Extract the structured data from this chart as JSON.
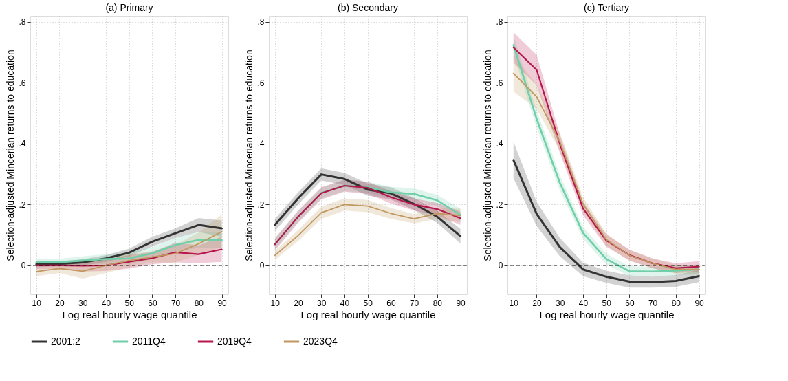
{
  "chart_data": [
    {
      "type": "line",
      "title": "(a) Primary",
      "xlabel": "Log real hourly wage quantile",
      "ylabel": "Selection-adjusted Mincerian returns to education",
      "x": [
        10,
        20,
        30,
        40,
        50,
        60,
        70,
        80,
        90
      ],
      "xlim": [
        7.4,
        92.8
      ],
      "xticks": [
        10,
        20,
        30,
        40,
        50,
        60,
        70,
        80,
        90
      ],
      "ylim": [
        -0.095,
        0.82
      ],
      "yticks": [
        {
          "value": 0,
          "label": "0"
        },
        {
          "value": 0.2,
          "label": ".2"
        },
        {
          "value": 0.4,
          "label": ".4"
        },
        {
          "value": 0.6,
          "label": ".6"
        },
        {
          "value": 0.8,
          "label": ".8"
        }
      ],
      "grid": true,
      "legend": "bottom",
      "ref_lines": [
        {
          "axis": "y",
          "value": 0,
          "color": "#000000",
          "line_style": "dashed"
        }
      ],
      "series": [
        {
          "name": "2001:2",
          "color": "#333333",
          "values": [
            0.004,
            0.005,
            0.01,
            0.023,
            0.042,
            0.078,
            0.106,
            0.133,
            0.122
          ],
          "lower": [
            -0.005,
            -0.003,
            0,
            0.012,
            0.03,
            0.062,
            0.09,
            0.11,
            0.095
          ],
          "upper": [
            0.013,
            0.014,
            0.02,
            0.034,
            0.055,
            0.094,
            0.122,
            0.156,
            0.148
          ]
        },
        {
          "name": "2011Q4",
          "color": "#6fcfa8",
          "values": [
            0.01,
            0.011,
            0.016,
            0.021,
            0.023,
            0.04,
            0.067,
            0.084,
            0.083
          ],
          "lower": [
            0,
            0,
            0.002,
            0.005,
            0.005,
            0.02,
            0.045,
            0.058,
            0.058
          ],
          "upper": [
            0.02,
            0.022,
            0.03,
            0.037,
            0.042,
            0.06,
            0.09,
            0.11,
            0.108
          ]
        },
        {
          "name": "2019Q4",
          "color": "#b5164b",
          "values": [
            0,
            0,
            -0.001,
            0,
            0.012,
            0.024,
            0.043,
            0.037,
            0.053
          ],
          "lower": [
            -0.012,
            -0.013,
            -0.02,
            -0.018,
            -0.01,
            0.004,
            0.01,
            0.008,
            0.012
          ],
          "upper": [
            0.012,
            0.013,
            0.018,
            0.018,
            0.034,
            0.044,
            0.075,
            0.066,
            0.095
          ]
        },
        {
          "name": "2023Q4",
          "color": "#c0975f",
          "values": [
            -0.02,
            -0.01,
            -0.019,
            0,
            0.016,
            0.028,
            0.039,
            0.071,
            0.111
          ],
          "lower": [
            -0.035,
            -0.025,
            -0.043,
            -0.025,
            -0.005,
            0.01,
            0.01,
            0.035,
            0.06
          ],
          "upper": [
            -0.005,
            0.005,
            0.005,
            0.025,
            0.037,
            0.046,
            0.068,
            0.108,
            0.168
          ]
        }
      ]
    },
    {
      "type": "line",
      "title": "(b) Secondary",
      "xlabel": "Log real hourly wage quantile",
      "ylabel": "Selection-adjusted Mincerian returns to education",
      "x": [
        10,
        20,
        30,
        40,
        50,
        60,
        70,
        80,
        90
      ],
      "xlim": [
        7.4,
        92.8
      ],
      "xticks": [
        10,
        20,
        30,
        40,
        50,
        60,
        70,
        80,
        90
      ],
      "ylim": [
        -0.095,
        0.82
      ],
      "yticks": [
        {
          "value": 0,
          "label": "0"
        },
        {
          "value": 0.2,
          "label": ".2"
        },
        {
          "value": 0.4,
          "label": ".4"
        },
        {
          "value": 0.6,
          "label": ".6"
        },
        {
          "value": 0.8,
          "label": ".8"
        }
      ],
      "grid": true,
      "legend": "bottom",
      "ref_lines": [
        {
          "axis": "y",
          "value": 0,
          "color": "#000000",
          "line_style": "dashed"
        }
      ],
      "series": [
        {
          "name": "2001:2",
          "color": "#333333",
          "values": [
            0.133,
            0.22,
            0.299,
            0.284,
            0.249,
            0.237,
            0.202,
            0.16,
            0.096
          ],
          "lower": [
            0.113,
            0.2,
            0.279,
            0.264,
            0.229,
            0.217,
            0.182,
            0.14,
            0.072
          ],
          "upper": [
            0.153,
            0.24,
            0.319,
            0.304,
            0.269,
            0.257,
            0.222,
            0.18,
            0.12
          ]
        },
        {
          "name": "2011Q4",
          "color": "#6fcfa8",
          "values": [
            0.07,
            0.16,
            0.238,
            0.262,
            0.257,
            0.24,
            0.235,
            0.214,
            0.166
          ],
          "lower": [
            0.052,
            0.142,
            0.22,
            0.244,
            0.239,
            0.222,
            0.217,
            0.196,
            0.146
          ],
          "upper": [
            0.088,
            0.178,
            0.256,
            0.28,
            0.275,
            0.258,
            0.253,
            0.232,
            0.186
          ]
        },
        {
          "name": "2019Q4",
          "color": "#b5164b",
          "values": [
            0.069,
            0.16,
            0.237,
            0.262,
            0.255,
            0.224,
            0.2,
            0.185,
            0.155
          ],
          "lower": [
            0.049,
            0.14,
            0.217,
            0.242,
            0.235,
            0.204,
            0.18,
            0.165,
            0.133
          ],
          "upper": [
            0.089,
            0.18,
            0.257,
            0.282,
            0.275,
            0.244,
            0.22,
            0.205,
            0.177
          ]
        },
        {
          "name": "2023Q4",
          "color": "#c0975f",
          "values": [
            0.033,
            0.098,
            0.173,
            0.2,
            0.195,
            0.171,
            0.153,
            0.171,
            0.164
          ],
          "lower": [
            0.018,
            0.08,
            0.153,
            0.18,
            0.175,
            0.153,
            0.138,
            0.153,
            0.142
          ],
          "upper": [
            0.048,
            0.116,
            0.193,
            0.22,
            0.215,
            0.189,
            0.168,
            0.189,
            0.186
          ]
        }
      ]
    },
    {
      "type": "line",
      "title": "(c) Tertiary",
      "xlabel": "Log real hourly wage quantile",
      "ylabel": "Selection-adjusted Mincerian returns to education",
      "x": [
        10,
        20,
        30,
        40,
        50,
        60,
        70,
        80,
        90
      ],
      "xlim": [
        7.4,
        92.8
      ],
      "xticks": [
        10,
        20,
        30,
        40,
        50,
        60,
        70,
        80,
        90
      ],
      "ylim": [
        -0.095,
        0.82
      ],
      "yticks": [
        {
          "value": 0,
          "label": "0"
        },
        {
          "value": 0.2,
          "label": ".2"
        },
        {
          "value": 0.4,
          "label": ".4"
        },
        {
          "value": 0.6,
          "label": ".6"
        },
        {
          "value": 0.8,
          "label": ".8"
        }
      ],
      "grid": true,
      "legend": "bottom",
      "ref_lines": [
        {
          "axis": "y",
          "value": 0,
          "color": "#000000",
          "line_style": "dashed"
        }
      ],
      "series": [
        {
          "name": "2001:2",
          "color": "#333333",
          "values": [
            0.346,
            0.169,
            0.06,
            -0.013,
            -0.037,
            -0.053,
            -0.055,
            -0.051,
            -0.035
          ],
          "lower": [
            0.286,
            0.129,
            0.03,
            -0.035,
            -0.057,
            -0.073,
            -0.073,
            -0.07,
            -0.055
          ],
          "upper": [
            0.406,
            0.209,
            0.09,
            0.009,
            -0.017,
            -0.033,
            -0.037,
            -0.032,
            -0.015
          ]
        },
        {
          "name": "2011Q4",
          "color": "#6fcfa8",
          "values": [
            0.724,
            0.481,
            0.271,
            0.107,
            0.021,
            -0.019,
            -0.02,
            -0.017,
            -0.013
          ],
          "lower": [
            0.694,
            0.451,
            0.246,
            0.087,
            0.003,
            -0.035,
            -0.036,
            -0.033,
            -0.029
          ],
          "upper": [
            0.754,
            0.511,
            0.296,
            0.127,
            0.039,
            -0.003,
            -0.004,
            -0.001,
            0.003
          ]
        },
        {
          "name": "2019Q4",
          "color": "#b5164b",
          "values": [
            0.716,
            0.642,
            0.399,
            0.187,
            0.082,
            0.034,
            0.007,
            -0.009,
            -0.004
          ],
          "lower": [
            0.666,
            0.592,
            0.369,
            0.165,
            0.062,
            0.016,
            -0.009,
            -0.025,
            -0.02
          ],
          "upper": [
            0.766,
            0.692,
            0.429,
            0.209,
            0.102,
            0.052,
            0.023,
            0.007,
            0.014
          ]
        },
        {
          "name": "2023Q4",
          "color": "#c0975f",
          "values": [
            0.631,
            0.554,
            0.406,
            0.202,
            0.085,
            0.033,
            0.007,
            -0.013,
            -0.013
          ],
          "lower": [
            0.571,
            0.514,
            0.376,
            0.18,
            0.065,
            0.015,
            -0.009,
            -0.027,
            -0.027
          ],
          "upper": [
            0.691,
            0.594,
            0.436,
            0.224,
            0.105,
            0.051,
            0.023,
            0.001,
            0.001
          ]
        }
      ]
    }
  ]
}
